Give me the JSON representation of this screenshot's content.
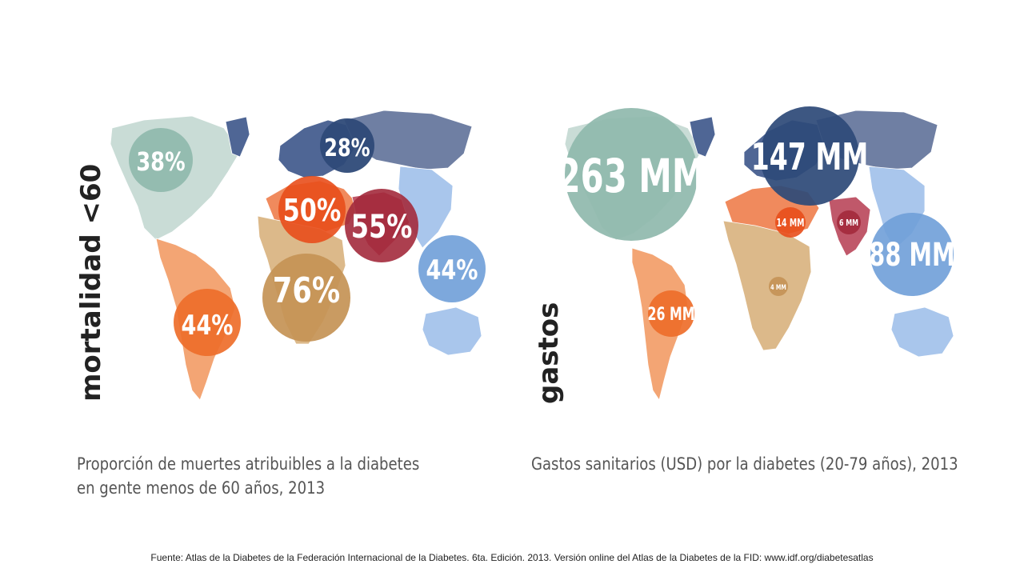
{
  "left_panel": {
    "vertical_title": "mortalidad <60",
    "caption_line1": "Proporción de muertes atribuibles a la diabetes",
    "caption_line2": "en gente menos de 60 años, 2013",
    "bubbles": [
      {
        "label": "38%",
        "value": 38,
        "region": "north-america",
        "color": "#8fb8ad"
      },
      {
        "label": "28%",
        "value": 28,
        "region": "europe",
        "color": "#2e4a78"
      },
      {
        "label": "50%",
        "value": 50,
        "region": "middle-east-north-africa",
        "color": "#e84e1b"
      },
      {
        "label": "55%",
        "value": 55,
        "region": "south-east-asia",
        "color": "#a32a3c"
      },
      {
        "label": "44%",
        "value": 44,
        "region": "western-pacific",
        "color": "#6f9fd8"
      },
      {
        "label": "76%",
        "value": 76,
        "region": "africa",
        "color": "#c49255"
      },
      {
        "label": "44%",
        "value": 44,
        "region": "south-central-america",
        "color": "#ee6e2a"
      }
    ]
  },
  "right_panel": {
    "vertical_title": "gastos",
    "caption": "Gastos sanitarios (USD) por la diabetes (20-79 años), 2013",
    "bubbles": [
      {
        "label": "263 MM",
        "value": 263,
        "region": "north-america",
        "color": "#8fb8ad"
      },
      {
        "label": "147 MM",
        "value": 147,
        "region": "europe",
        "color": "#2e4a78"
      },
      {
        "label": "14 MM",
        "value": 14,
        "region": "middle-east-north-africa",
        "color": "#e84e1b"
      },
      {
        "label": "6 MM",
        "value": 6,
        "region": "south-east-asia",
        "color": "#a32a3c"
      },
      {
        "label": "88 MM",
        "value": 88,
        "region": "western-pacific",
        "color": "#6f9fd8"
      },
      {
        "label": "4 MM",
        "value": 4,
        "region": "africa",
        "color": "#c49255"
      },
      {
        "label": "26 MM",
        "value": 26,
        "region": "south-central-america",
        "color": "#ee6e2a"
      }
    ]
  },
  "land_colors": {
    "north-america": "#c9dcd6",
    "south-central-america": "#f3a574",
    "europe": "#4f6695",
    "asia-north": "#6f7fa3",
    "middle-east-north-africa": "#f08a5d",
    "africa": "#dcb98a",
    "south-east-asia": "#c0586a",
    "western-pacific": "#a9c6ec"
  },
  "footer": {
    "source": "Fuente: Atlas de la Diabetes de la Federación Internacional  de la Diabetes. 6ta. Edición. 2013. Versión online del Atlas de la Diabetes de la FID: www.idf.org/diabetesatlas"
  }
}
